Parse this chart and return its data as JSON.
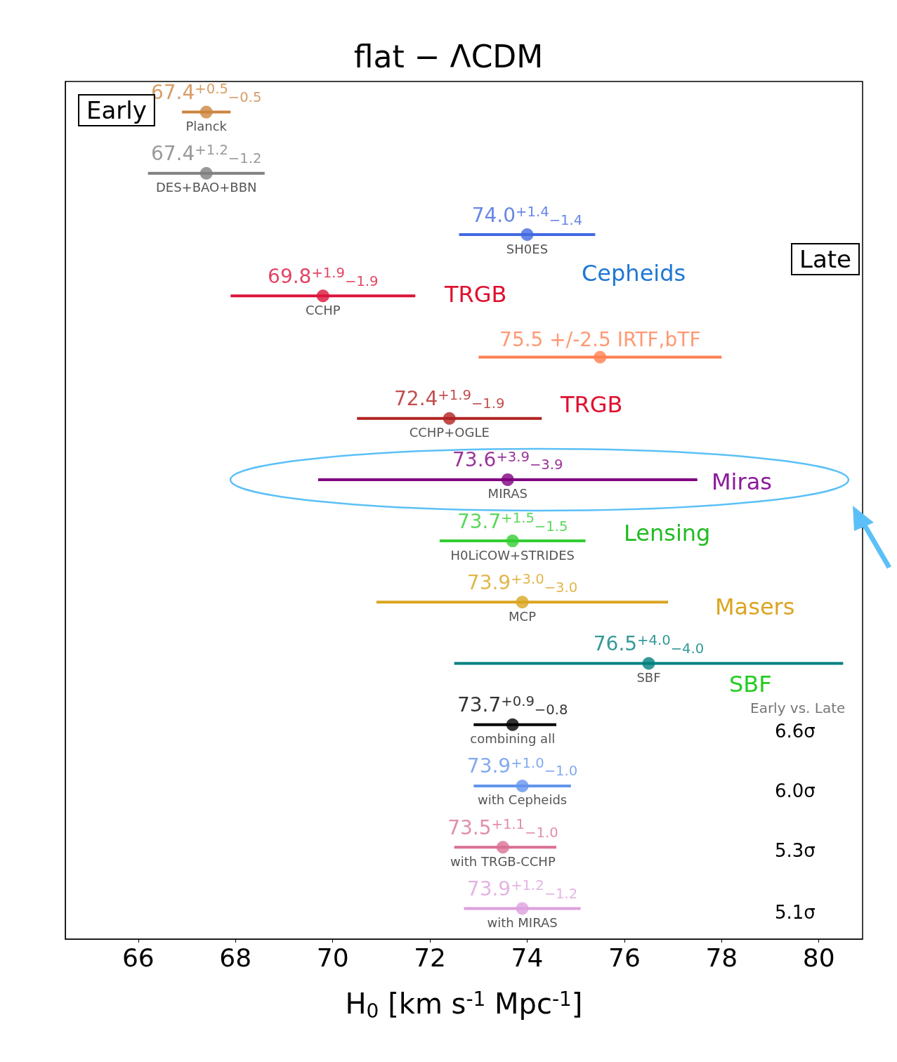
{
  "chart_data": {
    "type": "scatter",
    "orientation": "horizontal",
    "title": "flat − ΛCDM",
    "xlabel": "H$_{0}$ [km s$^{-1}$ Mpc$^{-1}$]",
    "categories": [
      "Planck",
      "DES+BAO+BBN",
      "SH0ES",
      "CCHP",
      null,
      "CCHP+OGLE",
      "MIRAS",
      "H0LiCOW+STRIDES",
      "MCP",
      "SBF",
      "combining all",
      "with Cepheids",
      "with TRGB-CCHP",
      "with MIRAS"
    ],
    "values": [
      67.4,
      67.4,
      74.0,
      69.8,
      75.5,
      72.4,
      73.6,
      73.7,
      73.9,
      76.5,
      73.7,
      73.9,
      73.5,
      73.9
    ],
    "errors": [
      0.5,
      1.2,
      1.4,
      1.9,
      2.5,
      1.9,
      3.9,
      1.5,
      3.0,
      4.0,
      [
        72.9,
        74.6
      ],
      1.0,
      [
        72.5,
        74.6
      ],
      1.2
    ],
    "colors": [
      "#cd853f",
      "#808080",
      "#4169e1",
      "#dc143c",
      "#ff7f50",
      "#b22222",
      "#800080",
      "#32cd32",
      "#daa520",
      "#008080",
      "#000000",
      "#6495ed",
      "#db7093",
      "#dda0dd"
    ],
    "value_labels": [
      "67.4$^{+0.5}$$_{−0.5}$",
      "67.4$^{+1.2}$$_{−1.2}$",
      "74.0$^{+1.4}$$_{−1.4}$",
      "69.8$^{+1.9}$$_{−1.9}$",
      "75.5 +/-2.5 IRTF,bTF",
      "72.4$^{+1.9}$$_{−1.9}$",
      "73.6$^{+3.9}$$_{−3.9}$",
      "73.7$^{+1.5}$$_{−1.5}$",
      "73.9$^{+3.0}$$_{−3.0}$",
      "76.5$^{+4.0}$$_{−4.0}$",
      "73.7$^{+0.9}$$_{−0.8}$",
      "73.9$^{+1.0}$$_{−1.0}$",
      "73.5$^{+1.1}$$_{−1.0}$",
      "73.9$^{+1.2}$$_{−1.2}$"
    ],
    "xlim": [
      64.5,
      80.9
    ],
    "xticks": [
      66,
      68,
      70,
      72,
      74,
      76,
      78,
      80
    ],
    "tick_labels": "x",
    "grid": false,
    "marker": "circle",
    "annotations": [
      "Early",
      "Late",
      "Cepheids",
      "TRGB",
      "TRGB",
      "Miras",
      "Lensing",
      "Masers",
      "SBF",
      "Early vs. Late",
      "6.6σ",
      "6.0σ",
      "5.3σ",
      "5.1σ"
    ]
  }
}
